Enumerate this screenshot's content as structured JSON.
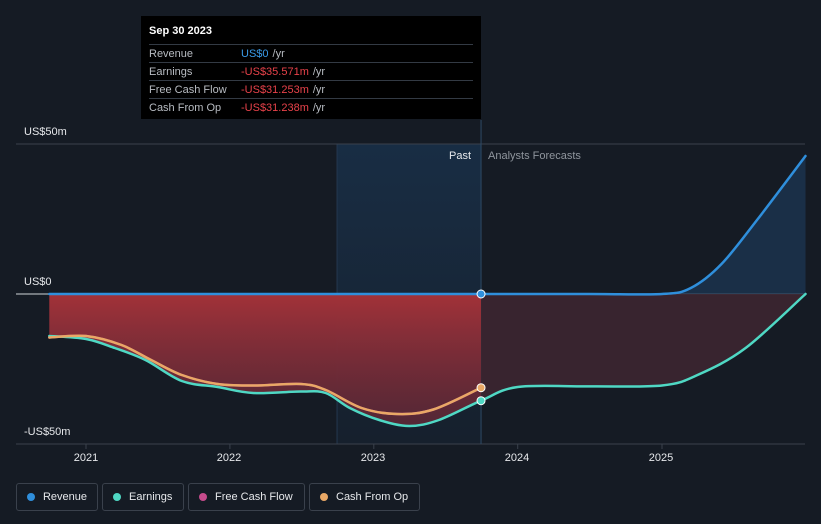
{
  "tooltip": {
    "date": "Sep 30 2023",
    "rows": [
      {
        "label": "Revenue",
        "value": "US$0",
        "unit": "/yr"
      },
      {
        "label": "Earnings",
        "value": "-US$35.571m",
        "unit": "/yr"
      },
      {
        "label": "Free Cash Flow",
        "value": "-US$31.253m",
        "unit": "/yr"
      },
      {
        "label": "Cash From Op",
        "value": "-US$31.238m",
        "unit": "/yr"
      }
    ]
  },
  "regions": {
    "past": "Past",
    "forecast": "Analysts Forecasts"
  },
  "colors": {
    "revenue": "#2f8fdc",
    "earnings": "#4fd8c4",
    "free_cash_flow": "#c54b8c",
    "cash_from_op": "#e9a866",
    "background": "#151b24"
  },
  "chart_data": {
    "type": "line",
    "y_tick_labels": [
      "US$50m",
      "US$0",
      "-US$50m"
    ],
    "x_tick_labels": [
      "2021",
      "2022",
      "2023",
      "2024",
      "2025"
    ],
    "ylim": [
      -50,
      50
    ],
    "highlight_date": "2023-09-30",
    "series": [
      {
        "name": "Revenue",
        "key": "revenue",
        "points": [
          [
            "2020-09-30",
            0
          ],
          [
            "2021-06-30",
            0
          ],
          [
            "2022-06-30",
            0
          ],
          [
            "2023-09-30",
            0
          ],
          [
            "2024-06-30",
            0
          ],
          [
            "2025-01-01",
            0
          ],
          [
            "2025-03-15",
            2
          ],
          [
            "2025-06-01",
            10
          ],
          [
            "2025-09-01",
            25
          ],
          [
            "2025-12-31",
            46
          ]
        ]
      },
      {
        "name": "Earnings",
        "key": "earnings",
        "points": [
          [
            "2020-09-30",
            -14
          ],
          [
            "2021-01-01",
            -15
          ],
          [
            "2021-03-15",
            -18
          ],
          [
            "2021-06-01",
            -22
          ],
          [
            "2021-09-01",
            -29
          ],
          [
            "2021-12-01",
            -31
          ],
          [
            "2022-03-01",
            -33
          ],
          [
            "2022-06-30",
            -32.5
          ],
          [
            "2022-09-01",
            -33
          ],
          [
            "2022-11-01",
            -38
          ],
          [
            "2023-01-15",
            -42
          ],
          [
            "2023-04-01",
            -44
          ],
          [
            "2023-06-15",
            -42
          ],
          [
            "2023-09-30",
            -35.571
          ],
          [
            "2024-01-01",
            -31
          ],
          [
            "2024-06-30",
            -30.8
          ],
          [
            "2025-01-01",
            -30.5
          ],
          [
            "2025-04-01",
            -27
          ],
          [
            "2025-08-01",
            -18
          ],
          [
            "2025-12-31",
            0
          ]
        ]
      },
      {
        "name": "Free Cash Flow",
        "key": "free_cash_flow",
        "points": [
          [
            "2020-09-30",
            -14.5
          ],
          [
            "2021-01-01",
            -14
          ],
          [
            "2021-04-01",
            -17
          ],
          [
            "2021-06-15",
            -22
          ],
          [
            "2021-09-01",
            -27
          ],
          [
            "2021-12-01",
            -30
          ],
          [
            "2022-03-01",
            -30.5
          ],
          [
            "2022-06-30",
            -30
          ],
          [
            "2022-09-01",
            -32
          ],
          [
            "2022-12-01",
            -38
          ],
          [
            "2023-03-01",
            -40
          ],
          [
            "2023-06-01",
            -38.5
          ],
          [
            "2023-09-30",
            -31.253
          ]
        ]
      },
      {
        "name": "Cash From Op",
        "key": "cash_from_op",
        "points": [
          [
            "2020-09-30",
            -14.5
          ],
          [
            "2021-01-01",
            -14
          ],
          [
            "2021-04-01",
            -17
          ],
          [
            "2021-06-15",
            -22
          ],
          [
            "2021-09-01",
            -27
          ],
          [
            "2021-12-01",
            -30
          ],
          [
            "2022-03-01",
            -30.5
          ],
          [
            "2022-06-30",
            -30
          ],
          [
            "2022-09-01",
            -32
          ],
          [
            "2022-12-01",
            -38
          ],
          [
            "2023-03-01",
            -40
          ],
          [
            "2023-06-01",
            -38.5
          ],
          [
            "2023-09-30",
            -31.238
          ]
        ]
      }
    ]
  },
  "legend": [
    {
      "label": "Revenue",
      "key": "revenue"
    },
    {
      "label": "Earnings",
      "key": "earnings"
    },
    {
      "label": "Free Cash Flow",
      "key": "free_cash_flow"
    },
    {
      "label": "Cash From Op",
      "key": "cash_from_op"
    }
  ]
}
